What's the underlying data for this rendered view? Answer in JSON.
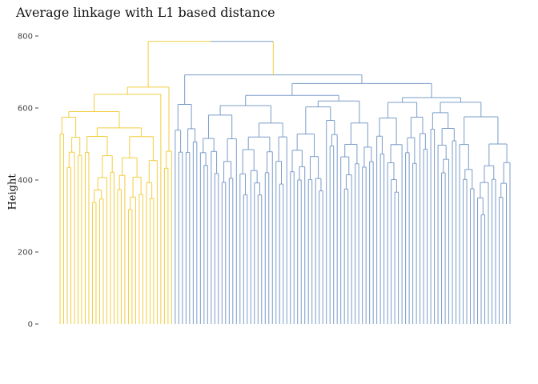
{
  "chart_data": {
    "type": "dendrogram",
    "title": "Average linkage with L1 based distance",
    "xlabel": "",
    "ylabel": "Height",
    "ylim": [
      0,
      800
    ],
    "y_ticks": [
      0,
      200,
      400,
      600,
      800
    ],
    "grid": false,
    "legend": "none",
    "root_height": 785,
    "clusters": [
      {
        "color": "#f2ce3f",
        "height": 658,
        "leaves": 32,
        "subtrees": [
          {
            "height": 590,
            "leaves": 28
          },
          {
            "height": 618,
            "leaves": 1
          },
          {
            "height": 480,
            "leaves": 3
          }
        ]
      },
      {
        "color": "#7a9cc9",
        "height": 692,
        "leaves": 94,
        "subtrees": [
          {
            "height": 610,
            "leaves": 7
          },
          {
            "height": 668,
            "leaves": 87
          }
        ]
      }
    ]
  }
}
